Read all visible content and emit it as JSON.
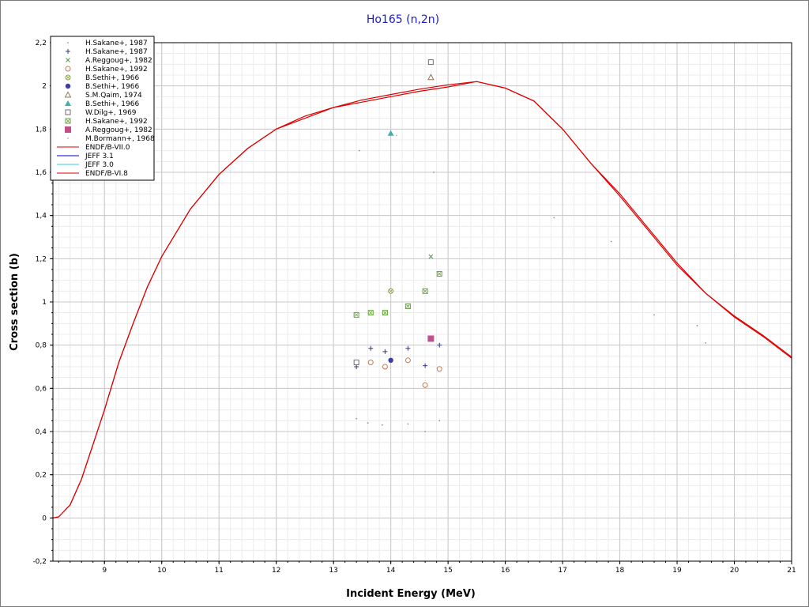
{
  "chart_data": {
    "type": "scatter",
    "title": "Ho165 (n,2n)",
    "xlabel": "Incident Energy (MeV)",
    "ylabel": "Cross section (b)",
    "xlim": [
      8.1,
      21
    ],
    "ylim": [
      -0.2,
      2.2
    ],
    "x_ticks": [
      "9",
      "10",
      "11",
      "12",
      "13",
      "14",
      "15",
      "16",
      "17",
      "18",
      "19",
      "20",
      "21"
    ],
    "y_ticks": [
      "-0,2",
      "0",
      "0,2",
      "0,4",
      "0,6",
      "0,8",
      "1",
      "1,2",
      "1,4",
      "1,6",
      "1,8",
      "2",
      "2,2"
    ],
    "y_tick_values": [
      -0.2,
      0,
      0.2,
      0.4,
      0.6,
      0.8,
      1.0,
      1.2,
      1.4,
      1.6,
      1.8,
      2.0,
      2.2
    ],
    "grid": true,
    "legend_position": "top-left",
    "series": [
      {
        "name": "H.Sakane+, 1987",
        "marker": "dot",
        "color": "#7aa36f",
        "points": [
          [
            13.4,
            0.46
          ],
          [
            13.6,
            0.44
          ],
          [
            13.85,
            0.43
          ],
          [
            14.3,
            0.435
          ],
          [
            14.6,
            0.4
          ],
          [
            14.85,
            0.45
          ],
          [
            13.45,
            1.7
          ],
          [
            14.75,
            1.6
          ],
          [
            16.85,
            1.39
          ],
          [
            17.85,
            1.28
          ],
          [
            18.6,
            0.94
          ],
          [
            19.35,
            0.89
          ],
          [
            19.5,
            0.81
          ]
        ]
      },
      {
        "name": "H.Sakane+, 1987",
        "marker": "plus",
        "color": "#3a3a7a",
        "points": [
          [
            13.4,
            0.7
          ],
          [
            13.65,
            0.785
          ],
          [
            13.9,
            0.77
          ],
          [
            14.3,
            0.785
          ],
          [
            14.6,
            0.705
          ],
          [
            14.85,
            0.8
          ]
        ]
      },
      {
        "name": "A.Reggoug+, 1982",
        "marker": "cross",
        "color": "#4f9a4f",
        "points": [
          [
            14.7,
            1.21
          ]
        ]
      },
      {
        "name": "H.Sakane+, 1992",
        "marker": "circle",
        "color": "#c87850",
        "points": [
          [
            13.65,
            0.72
          ],
          [
            13.9,
            0.7
          ],
          [
            14.3,
            0.73
          ],
          [
            14.6,
            0.615
          ],
          [
            14.85,
            0.69
          ]
        ]
      },
      {
        "name": "B.Sethi+, 1966",
        "marker": "circle-x",
        "color": "#8aa040",
        "points": [
          [
            14.0,
            1.05
          ]
        ]
      },
      {
        "name": "B.Sethi+, 1966",
        "marker": "filled-circle",
        "color": "#3c3ca8",
        "points": [
          [
            14.0,
            0.73
          ]
        ]
      },
      {
        "name": "S.M.Qaim, 1974",
        "marker": "triangle",
        "color": "#8a7a5a",
        "points": [
          [
            14.7,
            2.04
          ]
        ]
      },
      {
        "name": "B.Sethi+, 1966",
        "marker": "filled-triangle",
        "color": "#40b0b0",
        "points": [
          [
            14.0,
            1.78
          ]
        ]
      },
      {
        "name": "W.Dilg+, 1969",
        "marker": "square",
        "color": "#7a6a7a",
        "points": [
          [
            14.7,
            2.11
          ],
          [
            13.4,
            0.72
          ]
        ]
      },
      {
        "name": "H.Sakane+, 1992",
        "marker": "square-x",
        "color": "#6aa040",
        "points": [
          [
            13.4,
            0.94
          ],
          [
            13.65,
            0.95
          ],
          [
            13.9,
            0.95
          ],
          [
            14.3,
            0.98
          ],
          [
            14.6,
            1.05
          ],
          [
            14.85,
            1.13
          ]
        ]
      },
      {
        "name": "A.Reggoug+, 1982",
        "marker": "filled-square",
        "color": "#c0508a",
        "points": [
          [
            14.7,
            0.83
          ]
        ]
      },
      {
        "name": "M.Bormann+, 1968",
        "marker": "dot",
        "color": "#b0b0b0",
        "points": [
          [
            14.1,
            1.77
          ]
        ]
      },
      {
        "name": "ENDF/B-VII.0",
        "marker": "line",
        "color": "#dd0000",
        "points": [
          [
            8.1,
            0
          ],
          [
            8.2,
            0.005
          ],
          [
            8.4,
            0.06
          ],
          [
            8.6,
            0.18
          ],
          [
            8.8,
            0.34
          ],
          [
            9.0,
            0.5
          ],
          [
            9.25,
            0.72
          ],
          [
            9.5,
            0.9
          ],
          [
            9.75,
            1.07
          ],
          [
            10.0,
            1.21
          ],
          [
            10.5,
            1.43
          ],
          [
            11.0,
            1.59
          ],
          [
            11.5,
            1.71
          ],
          [
            12.0,
            1.8
          ],
          [
            12.5,
            1.86
          ],
          [
            13.0,
            1.9
          ],
          [
            13.5,
            1.935
          ],
          [
            14.0,
            1.96
          ],
          [
            14.5,
            1.985
          ],
          [
            15.0,
            2.005
          ],
          [
            15.5,
            2.02
          ],
          [
            16.0,
            1.99
          ],
          [
            16.5,
            1.93
          ],
          [
            17.0,
            1.8
          ],
          [
            17.5,
            1.64
          ],
          [
            18.0,
            1.49
          ],
          [
            18.5,
            1.33
          ],
          [
            19.0,
            1.17
          ],
          [
            19.5,
            1.04
          ],
          [
            20.0,
            0.93
          ],
          [
            20.5,
            0.84
          ],
          [
            21.0,
            0.74
          ]
        ]
      },
      {
        "name": "JEFF 3.1",
        "marker": "line",
        "color": "#0000cc",
        "points": []
      },
      {
        "name": "JEFF 3.0",
        "marker": "line",
        "color": "#33cccc",
        "points": []
      },
      {
        "name": "ENDF/B-VI.8",
        "marker": "line",
        "color": "#dd0000",
        "points": [
          [
            8.1,
            0
          ],
          [
            8.2,
            0.005
          ],
          [
            8.4,
            0.06
          ],
          [
            8.6,
            0.18
          ],
          [
            8.8,
            0.34
          ],
          [
            9.0,
            0.5
          ],
          [
            9.25,
            0.72
          ],
          [
            9.5,
            0.9
          ],
          [
            9.75,
            1.07
          ],
          [
            10.0,
            1.21
          ],
          [
            10.5,
            1.43
          ],
          [
            11.0,
            1.59
          ],
          [
            11.5,
            1.71
          ],
          [
            12.0,
            1.8
          ],
          [
            12.5,
            1.85
          ],
          [
            13.0,
            1.9
          ],
          [
            13.5,
            1.925
          ],
          [
            14.0,
            1.95
          ],
          [
            14.5,
            1.975
          ],
          [
            15.0,
            1.995
          ],
          [
            15.5,
            2.02
          ],
          [
            16.0,
            1.99
          ],
          [
            16.5,
            1.93
          ],
          [
            17.0,
            1.8
          ],
          [
            17.5,
            1.64
          ],
          [
            18.0,
            1.5
          ],
          [
            18.5,
            1.34
          ],
          [
            19.0,
            1.18
          ],
          [
            19.5,
            1.04
          ],
          [
            20.0,
            0.935
          ],
          [
            20.5,
            0.845
          ],
          [
            21.0,
            0.745
          ]
        ]
      }
    ]
  }
}
